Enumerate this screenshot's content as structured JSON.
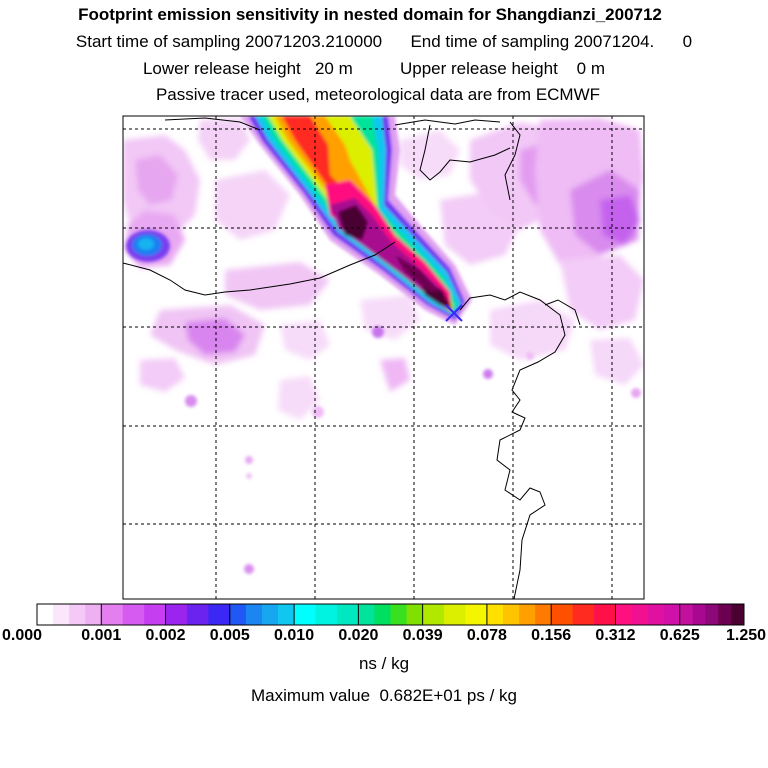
{
  "titles": {
    "line1": "Footprint emission sensitivity in nested domain for Shangdianzi_200712",
    "line2": "Start time of sampling 20071203.210000      End time of sampling 20071204.      0",
    "line3": "Lower release height   20 m          Upper release height    0 m",
    "line4": "Passive tracer used, meteorological data are from ECMWF"
  },
  "chart_data": {
    "type": "heatmap",
    "title": "Footprint emission sensitivity in nested domain for Shangdianzi_200712",
    "colorbar": {
      "tick_labels": [
        "0.000",
        "0.001",
        "0.002",
        "0.005",
        "0.010",
        "0.020",
        "0.039",
        "0.078",
        "0.156",
        "0.312",
        "0.625",
        "1.250"
      ],
      "tick_values": [
        0.0,
        0.001,
        0.002,
        0.005,
        0.01,
        0.02,
        0.039,
        0.078,
        0.156,
        0.312,
        0.625,
        1.25
      ],
      "colors": [
        [
          "#ffffff",
          "#fbe6fb",
          "#f5c9f7",
          "#efb0f3"
        ],
        [
          "#e47ff0",
          "#d65bf0",
          "#c63ef0"
        ],
        [
          "#9b25ef",
          "#6b24ef",
          "#3b28f5"
        ],
        [
          "#1f58f5",
          "#1b86f2",
          "#16a7f0",
          "#10c7ef"
        ],
        [
          "#00ffff",
          "#00f2e0",
          "#00e8c2"
        ],
        [
          "#00e39a",
          "#00e060",
          "#38e020",
          "#80e000"
        ],
        [
          "#b0e800",
          "#dcef00",
          "#f5f500"
        ],
        [
          "#ffe000",
          "#ffc400",
          "#ffa000",
          "#ff7a00"
        ],
        [
          "#ff5000",
          "#ff2a20",
          "#ff1048"
        ],
        [
          "#ff1080",
          "#f01090",
          "#e010a0",
          "#d010a8"
        ],
        [
          "#c4109f",
          "#a80890",
          "#8c0878",
          "#6c0050",
          "#4a0030"
        ]
      ],
      "units": "ns / kg"
    },
    "maximum": "Maximum value  0.682E+01 ps / kg",
    "release_point_marker": "station",
    "grid": true
  }
}
